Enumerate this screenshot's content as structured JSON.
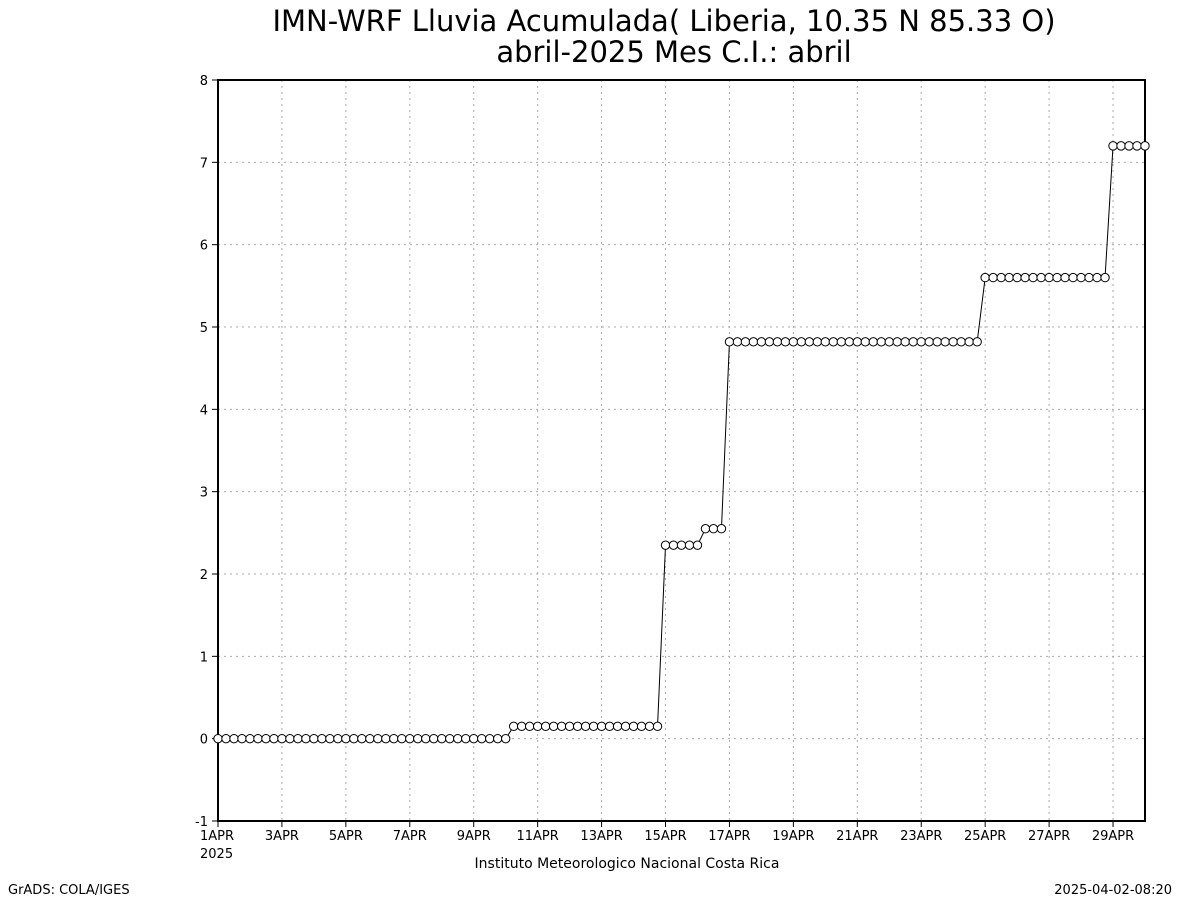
{
  "header": {
    "title_line1": "IMN-WRF  Lluvia Acumulada( Liberia, 10.35  N 85.33  O)",
    "title_line2": "abril-2025 Mes C.I.: abril"
  },
  "footer": {
    "institution": "Instituto Meteorologico Nacional Costa Rica",
    "software_credit": "GrADS: COLA/IGES",
    "timestamp": "2025-04-02-08:20"
  },
  "chart_data": {
    "type": "line",
    "title": "IMN-WRF  Lluvia Acumulada( Liberia, 10.35  N 85.33  O)",
    "subtitle": "abril-2025 Mes C.I.: abril",
    "xlabel": "",
    "ylabel": "",
    "x_range_days": [
      1,
      30
    ],
    "x_year_label": "2025",
    "x_ticks": [
      {
        "day": 1,
        "label": "1APR"
      },
      {
        "day": 3,
        "label": "3APR"
      },
      {
        "day": 5,
        "label": "5APR"
      },
      {
        "day": 7,
        "label": "7APR"
      },
      {
        "day": 9,
        "label": "9APR"
      },
      {
        "day": 11,
        "label": "11APR"
      },
      {
        "day": 13,
        "label": "13APR"
      },
      {
        "day": 15,
        "label": "15APR"
      },
      {
        "day": 17,
        "label": "17APR"
      },
      {
        "day": 19,
        "label": "19APR"
      },
      {
        "day": 21,
        "label": "21APR"
      },
      {
        "day": 23,
        "label": "23APR"
      },
      {
        "day": 25,
        "label": "25APR"
      },
      {
        "day": 27,
        "label": "27APR"
      },
      {
        "day": 29,
        "label": "29APR"
      }
    ],
    "ylim": [
      -1,
      8
    ],
    "y_ticks": [
      -1,
      0,
      1,
      2,
      3,
      4,
      5,
      6,
      7,
      8
    ],
    "grid": true,
    "marker": "open-circle",
    "time_step_hours": 6,
    "steps": [
      {
        "from_day": 1,
        "to_day": 10.25,
        "value": 0
      },
      {
        "from_day": 10.25,
        "to_day": 15.0,
        "value": 0.15
      },
      {
        "from_day": 15.0,
        "to_day": 16.25,
        "value": 2.35
      },
      {
        "from_day": 16.25,
        "to_day": 17.0,
        "value": 2.55
      },
      {
        "from_day": 17.0,
        "to_day": 25.0,
        "value": 4.82
      },
      {
        "from_day": 25.0,
        "to_day": 29.0,
        "value": 5.6
      },
      {
        "from_day": 29.0,
        "to_day": 30.0,
        "value": 7.2
      }
    ]
  }
}
